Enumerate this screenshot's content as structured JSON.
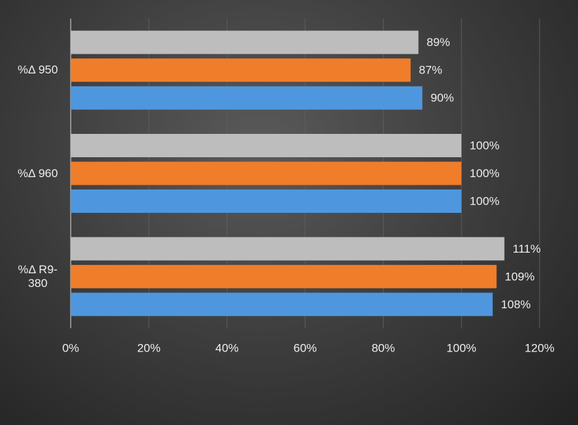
{
  "chart_data": {
    "type": "bar",
    "orientation": "horizontal",
    "categories": [
      "%Δ 950",
      "%Δ 960",
      "%Δ R9-380"
    ],
    "series": [
      {
        "color": "#bdbdbd",
        "values": [
          89,
          100,
          111
        ],
        "value_labels": [
          "89%",
          "100%",
          "111%"
        ]
      },
      {
        "color": "#f07d2a",
        "values": [
          87,
          100,
          109
        ],
        "value_labels": [
          "87%",
          "100%",
          "109%"
        ]
      },
      {
        "color": "#4e97de",
        "values": [
          90,
          100,
          108
        ],
        "value_labels": [
          "90%",
          "100%",
          "108%"
        ]
      }
    ],
    "xlim": [
      0,
      120
    ],
    "xticks": [
      {
        "value": 0,
        "label": "0%"
      },
      {
        "value": 20,
        "label": "20%"
      },
      {
        "value": 40,
        "label": "40%"
      },
      {
        "value": 60,
        "label": "60%"
      },
      {
        "value": 80,
        "label": "80%"
      },
      {
        "value": 100,
        "label": "100%"
      },
      {
        "value": 120,
        "label": "120%"
      }
    ],
    "grid": true
  }
}
